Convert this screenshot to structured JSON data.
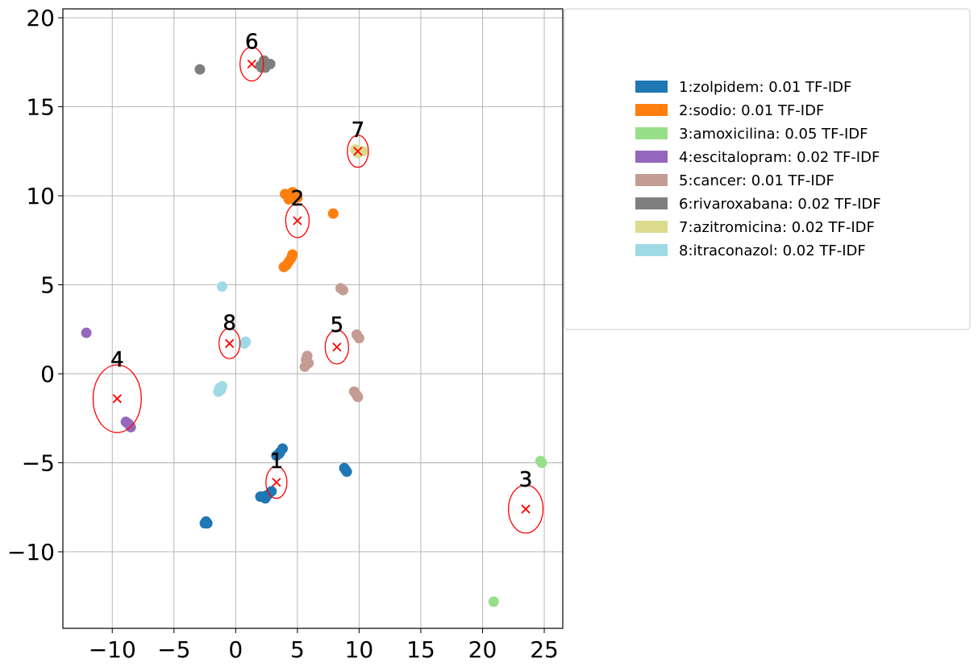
{
  "chart_data": {
    "type": "scatter",
    "title": "",
    "xlabel": "",
    "ylabel": "",
    "xlim": [
      -14,
      26.5
    ],
    "ylim": [
      -14.3,
      20.5
    ],
    "grid": true,
    "x_ticks": [
      -10,
      -5,
      0,
      5,
      10,
      15,
      20,
      25
    ],
    "x_tick_labels": [
      "−10",
      "−5",
      "0",
      "5",
      "10",
      "15",
      "20",
      "25"
    ],
    "y_ticks": [
      -10,
      -5,
      0,
      5,
      10,
      15,
      20
    ],
    "y_tick_labels": [
      "−10",
      "−5",
      "0",
      "5",
      "10",
      "15",
      "20"
    ],
    "legend_placement": "outside-right",
    "series": [
      {
        "id": "1",
        "name": "1:zolpidem: 0.01 TF-IDF",
        "color": "#1f77b4",
        "points": [
          [
            3.8,
            -4.2
          ],
          [
            3.6,
            -4.4
          ],
          [
            3.5,
            -4.5
          ],
          [
            3.3,
            -4.6
          ],
          [
            2.9,
            -6.6
          ],
          [
            2.6,
            -6.8
          ],
          [
            2.2,
            -6.9
          ],
          [
            2.4,
            -7.0
          ],
          [
            2.0,
            -6.9
          ],
          [
            8.9,
            -5.4
          ],
          [
            9.0,
            -5.5
          ],
          [
            8.8,
            -5.3
          ],
          [
            -2.4,
            -8.3
          ],
          [
            -2.3,
            -8.4
          ],
          [
            -2.5,
            -8.4
          ]
        ]
      },
      {
        "id": "2",
        "name": "2:sodio: 0.01 TF-IDF",
        "color": "#ff7f0e",
        "points": [
          [
            4.0,
            10.1
          ],
          [
            4.2,
            10.0
          ],
          [
            4.4,
            9.9
          ],
          [
            4.6,
            10.2
          ],
          [
            4.8,
            10.1
          ],
          [
            5.0,
            9.9
          ],
          [
            4.3,
            9.8
          ],
          [
            7.9,
            9.0
          ],
          [
            4.1,
            6.1
          ],
          [
            4.3,
            6.3
          ],
          [
            4.5,
            6.5
          ],
          [
            4.6,
            6.7
          ],
          [
            3.9,
            6.0
          ]
        ]
      },
      {
        "id": "3",
        "name": "3:amoxicilina: 0.05 TF-IDF",
        "color": "#98df8a",
        "points": [
          [
            24.7,
            -4.9
          ],
          [
            24.8,
            -5.0
          ],
          [
            20.9,
            -12.8
          ]
        ]
      },
      {
        "id": "4",
        "name": "4:escitalopram: 0.02 TF-IDF",
        "color": "#9467bd",
        "points": [
          [
            -12.1,
            2.3
          ],
          [
            -8.9,
            -2.7
          ],
          [
            -8.7,
            -2.8
          ],
          [
            -8.6,
            -2.9
          ],
          [
            -8.5,
            -3.0
          ]
        ]
      },
      {
        "id": "5",
        "name": "5:cancer: 0.01 TF-IDF",
        "color": "#c49c94",
        "points": [
          [
            8.5,
            4.8
          ],
          [
            8.7,
            4.7
          ],
          [
            9.8,
            2.2
          ],
          [
            10.0,
            2.0
          ],
          [
            5.8,
            1.0
          ],
          [
            5.7,
            0.8
          ],
          [
            5.9,
            0.6
          ],
          [
            5.6,
            0.4
          ],
          [
            9.6,
            -1.0
          ],
          [
            9.8,
            -1.2
          ],
          [
            9.9,
            -1.3
          ]
        ]
      },
      {
        "id": "6",
        "name": "6:rivaroxabana: 0.02 TF-IDF",
        "color": "#7f7f7f",
        "points": [
          [
            -2.9,
            17.1
          ],
          [
            2.0,
            17.3
          ],
          [
            2.3,
            17.6
          ],
          [
            2.6,
            17.4
          ],
          [
            2.8,
            17.4
          ],
          [
            2.1,
            17.2
          ],
          [
            2.4,
            17.2
          ]
        ]
      },
      {
        "id": "7",
        "name": "7:azitromicina: 0.02 TF-IDF",
        "color": "#dbdb8d",
        "points": [
          [
            9.7,
            12.6
          ],
          [
            10.0,
            12.5
          ],
          [
            10.3,
            12.5
          ],
          [
            9.9,
            12.4
          ]
        ]
      },
      {
        "id": "8",
        "name": "8:itraconazol: 0.02 TF-IDF",
        "color": "#9edae5",
        "points": [
          [
            -1.1,
            4.9
          ],
          [
            0.8,
            1.8
          ],
          [
            0.7,
            1.7
          ],
          [
            -1.1,
            -0.7
          ],
          [
            -1.3,
            -0.8
          ],
          [
            -1.4,
            -1.0
          ],
          [
            -1.2,
            -0.9
          ]
        ]
      }
    ],
    "centroids": [
      {
        "label": "1",
        "x": 3.3,
        "y": -6.1,
        "rx": 0.85,
        "ry": 0.9
      },
      {
        "label": "2",
        "x": 5.0,
        "y": 8.6,
        "rx": 0.95,
        "ry": 0.95
      },
      {
        "label": "3",
        "x": 23.5,
        "y": -7.6,
        "rx": 1.4,
        "ry": 1.35
      },
      {
        "label": "4",
        "x": -9.6,
        "y": -1.4,
        "rx": 1.95,
        "ry": 1.9
      },
      {
        "label": "5",
        "x": 8.2,
        "y": 1.5,
        "rx": 0.95,
        "ry": 0.95
      },
      {
        "label": "6",
        "x": 1.3,
        "y": 17.4,
        "rx": 0.95,
        "ry": 0.95
      },
      {
        "label": "7",
        "x": 9.9,
        "y": 12.5,
        "rx": 0.85,
        "ry": 0.9
      },
      {
        "label": "8",
        "x": -0.5,
        "y": 1.7,
        "rx": 0.85,
        "ry": 0.85
      }
    ]
  }
}
